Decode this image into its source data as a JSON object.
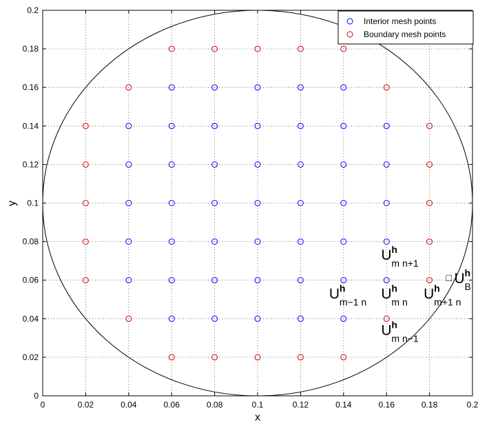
{
  "chart_data": {
    "type": "scatter",
    "title": "",
    "xlabel": "x",
    "ylabel": "y",
    "xlim": [
      0,
      0.2
    ],
    "ylim": [
      0,
      0.2
    ],
    "grid": true,
    "x_ticks": [
      "0",
      "0.02",
      "0.04",
      "0.06",
      "0.08",
      "0.1",
      "0.12",
      "0.14",
      "0.16",
      "0.18",
      "0.2"
    ],
    "y_ticks": [
      "0",
      "0.02",
      "0.04",
      "0.06",
      "0.08",
      "0.1",
      "0.12",
      "0.14",
      "0.16",
      "0.18",
      "0.2"
    ],
    "legend_position": "top-right",
    "circle": {
      "center": [
        0.1,
        0.1
      ],
      "radius": 0.1,
      "color": "#000000"
    },
    "series": [
      {
        "name": "Interior mesh points",
        "color": "#0000ff",
        "points": [
          [
            0.04,
            0.14
          ],
          [
            0.04,
            0.12
          ],
          [
            0.04,
            0.1
          ],
          [
            0.04,
            0.08
          ],
          [
            0.04,
            0.06
          ],
          [
            0.06,
            0.16
          ],
          [
            0.06,
            0.14
          ],
          [
            0.06,
            0.12
          ],
          [
            0.06,
            0.1
          ],
          [
            0.06,
            0.08
          ],
          [
            0.06,
            0.06
          ],
          [
            0.06,
            0.04
          ],
          [
            0.08,
            0.16
          ],
          [
            0.08,
            0.14
          ],
          [
            0.08,
            0.12
          ],
          [
            0.08,
            0.1
          ],
          [
            0.08,
            0.08
          ],
          [
            0.08,
            0.06
          ],
          [
            0.08,
            0.04
          ],
          [
            0.1,
            0.16
          ],
          [
            0.1,
            0.14
          ],
          [
            0.1,
            0.12
          ],
          [
            0.1,
            0.1
          ],
          [
            0.1,
            0.08
          ],
          [
            0.1,
            0.06
          ],
          [
            0.1,
            0.04
          ],
          [
            0.12,
            0.16
          ],
          [
            0.12,
            0.14
          ],
          [
            0.12,
            0.12
          ],
          [
            0.12,
            0.1
          ],
          [
            0.12,
            0.08
          ],
          [
            0.12,
            0.06
          ],
          [
            0.12,
            0.04
          ],
          [
            0.14,
            0.16
          ],
          [
            0.14,
            0.14
          ],
          [
            0.14,
            0.12
          ],
          [
            0.14,
            0.1
          ],
          [
            0.14,
            0.08
          ],
          [
            0.14,
            0.06
          ],
          [
            0.14,
            0.04
          ],
          [
            0.16,
            0.14
          ],
          [
            0.16,
            0.12
          ],
          [
            0.16,
            0.1
          ],
          [
            0.16,
            0.08
          ],
          [
            0.16,
            0.06
          ]
        ]
      },
      {
        "name": "Boundary mesh points",
        "color": "#d00000",
        "points": [
          [
            0.06,
            0.18
          ],
          [
            0.08,
            0.18
          ],
          [
            0.1,
            0.18
          ],
          [
            0.12,
            0.18
          ],
          [
            0.14,
            0.18
          ],
          [
            0.04,
            0.16
          ],
          [
            0.16,
            0.16
          ],
          [
            0.02,
            0.14
          ],
          [
            0.18,
            0.14
          ],
          [
            0.02,
            0.12
          ],
          [
            0.18,
            0.12
          ],
          [
            0.02,
            0.1
          ],
          [
            0.18,
            0.1
          ],
          [
            0.02,
            0.08
          ],
          [
            0.18,
            0.08
          ],
          [
            0.02,
            0.06
          ],
          [
            0.18,
            0.06
          ],
          [
            0.04,
            0.04
          ],
          [
            0.16,
            0.04
          ],
          [
            0.06,
            0.02
          ],
          [
            0.08,
            0.02
          ],
          [
            0.1,
            0.02
          ],
          [
            0.12,
            0.02
          ],
          [
            0.14,
            0.02
          ]
        ]
      }
    ],
    "annotations": [
      {
        "main": "U",
        "sup": "h",
        "sub": "m n+1",
        "x": 0.1575,
        "y": 0.0705
      },
      {
        "main": "U",
        "sup": "h",
        "sub": "m−1 n",
        "x": 0.1333,
        "y": 0.0505
      },
      {
        "main": "U",
        "sup": "h",
        "sub": "m n",
        "x": 0.1575,
        "y": 0.0505
      },
      {
        "main": "U",
        "sup": "h",
        "sub": "m+1 n",
        "x": 0.1773,
        "y": 0.0505
      },
      {
        "main": "U",
        "sup": "h",
        "sub": "B",
        "x": 0.1915,
        "y": 0.0585,
        "marker": "□"
      },
      {
        "main": "U",
        "sup": "h",
        "sub": "m n−1",
        "x": 0.1575,
        "y": 0.0315
      }
    ]
  }
}
